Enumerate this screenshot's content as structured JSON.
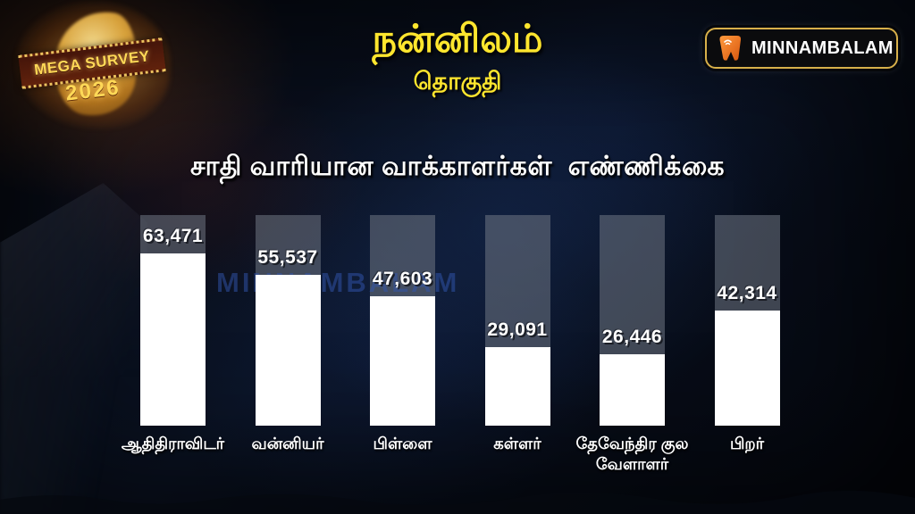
{
  "header": {
    "badge": {
      "line1": "MEGA SURVEY",
      "line2": "2026"
    },
    "title": "நன்னிலம்",
    "subtitle": "தொகுதி",
    "brand": "MINNAMBALAM"
  },
  "watermark": "MINNAMBALAM",
  "chart_data": {
    "type": "bar",
    "title": "சாதி வாரியான வாக்காளர்கள்  எண்ணிக்கை",
    "categories": [
      "ஆதிதிராவிடர்",
      "வன்னியர்",
      "பிள்ளை",
      "கள்ளர்",
      "தேவேந்திர குல வேளாளர்",
      "பிறர்"
    ],
    "values": [
      63471,
      55537,
      47603,
      29091,
      26446,
      42314
    ],
    "value_labels": [
      "63,471",
      "55,537",
      "47,603",
      "29,091",
      "26,446",
      "42,314"
    ],
    "xlabel": "",
    "ylabel": "",
    "ylim": [
      0,
      63471
    ],
    "grid": false,
    "legend": "none",
    "bar_color": "#ffffff",
    "track_color": "#70768a",
    "value_text_color": "#ffffff"
  },
  "colors": {
    "accent_yellow": "#ffe62e",
    "brand_border_gold": "#d8b04a",
    "brand_icon_orange": "#f07a1e",
    "watermark_blue": "#3255af",
    "background_navy": "#0a1222"
  }
}
